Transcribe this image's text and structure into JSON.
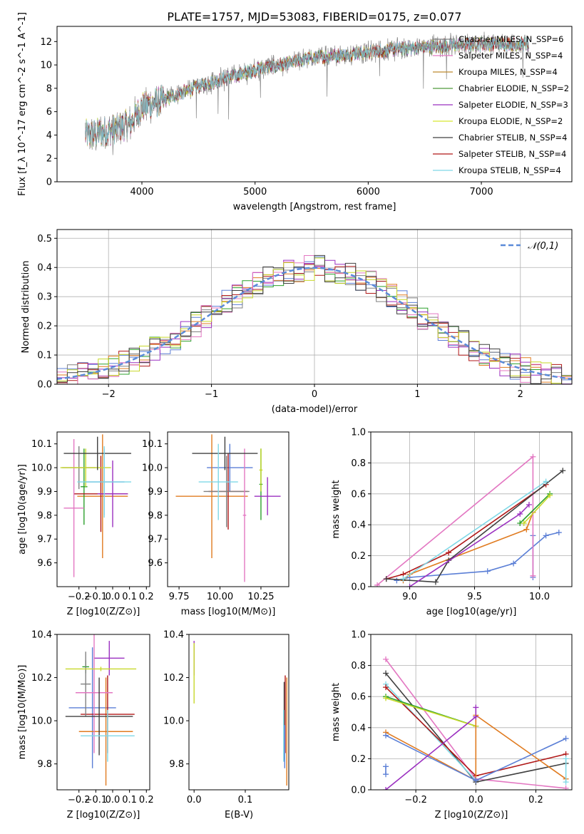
{
  "figure_title": "PLATE=1757, MJD=53083, FIBERID=0175, z=0.077",
  "colors": [
    "#808080",
    "#e377c2",
    "#bd8a2e",
    "#4f9a3c",
    "#9b30c0",
    "#d7e830",
    "#404040",
    "#b01818",
    "#7fd8e6"
  ],
  "chart_data": [
    {
      "type": "line",
      "xlabel": "wavelength [Angstrom, rest frame]",
      "ylabel": "Flux [f_λ 10^-17 erg cm^-2 s^-1 A^-1]",
      "xlim": [
        3250,
        7800
      ],
      "ylim": [
        0,
        13.3
      ],
      "xticks": [
        4000,
        5000,
        6000,
        7000
      ],
      "yticks": [
        0,
        2,
        4,
        6,
        8,
        10,
        12
      ],
      "grid": false,
      "legend_position": "right",
      "legend": [
        "Chabrier MILES, N_SSP=6",
        "Salpeter MILES, N_SSP=4",
        "Kroupa MILES, N_SSP=4",
        "Chabrier ELODIE, N_SSP=2",
        "Salpeter ELODIE, N_SSP=3",
        "Kroupa ELODIE, N_SSP=2",
        "Chabrier STELIB, N_SSP=4",
        "Salpeter STELIB, N_SSP=4",
        "Kroupa STELIB, N_SSP=4"
      ],
      "continuum": [
        [
          3500,
          4.0
        ],
        [
          3700,
          4.3
        ],
        [
          3900,
          5.0
        ],
        [
          4000,
          6.4
        ],
        [
          4200,
          7.0
        ],
        [
          4500,
          8.2
        ],
        [
          4800,
          9.0
        ],
        [
          5000,
          9.6
        ],
        [
          5200,
          9.9
        ],
        [
          5500,
          10.6
        ],
        [
          5800,
          10.9
        ],
        [
          6200,
          11.3
        ],
        [
          6600,
          11.6
        ],
        [
          7000,
          11.8
        ],
        [
          7400,
          11.8
        ]
      ],
      "data_range": [
        3500,
        7420
      ]
    },
    {
      "type": "line",
      "xlabel": "(data-model)/error",
      "ylabel": "Normed distribution",
      "xlim": [
        -2.5,
        2.5
      ],
      "ylim": [
        0,
        0.53
      ],
      "xticks": [
        -2,
        -1,
        0,
        1,
        2
      ],
      "yticks": [
        0.0,
        0.1,
        0.2,
        0.3,
        0.4,
        0.5
      ],
      "grid": true,
      "legend_position": "top-right",
      "legend": [
        "𝒩(0,1)"
      ],
      "bin_width": 0.1,
      "series_count": 9
    },
    {
      "type": "scatter",
      "xlabel": "Z [log10(Z/Z⊙)]",
      "ylabel": "age [log10(age/yr)]",
      "xlim": [
        -0.33,
        0.22
      ],
      "ylim": [
        9.5,
        10.15
      ],
      "xticks": [
        -0.2,
        -0.1,
        0.0,
        0.1,
        0.2
      ],
      "yticks": [
        9.6,
        9.7,
        9.8,
        9.9,
        10.0,
        10.1
      ],
      "grid": false,
      "errorbars": [
        {
          "color": "#5b7fd6",
          "x": -0.05,
          "y": 9.94,
          "xerr": 0.12,
          "yerr": 0.14
        },
        {
          "color": "#e07b20",
          "x": -0.06,
          "y": 9.88,
          "xerr": 0.15,
          "yerr": 0.26
        },
        {
          "color": "#2ca02c",
          "x": -0.17,
          "y": 9.92,
          "xerr": 0.02,
          "yerr": 0.16
        },
        {
          "color": "#b01818",
          "x": -0.07,
          "y": 9.89,
          "xerr": 0.16,
          "yerr": 0.16
        },
        {
          "color": "#9b30c0",
          "x": 0.0,
          "y": 9.89,
          "xerr": 0.09,
          "yerr": 0.14
        },
        {
          "color": "#7f7f7f",
          "x": -0.2,
          "y": 10.0,
          "xerr": 0.1,
          "yerr": 0.09
        },
        {
          "color": "#e377c2",
          "x": -0.23,
          "y": 9.83,
          "xerr": 0.06,
          "yerr": 0.29
        },
        {
          "color": "#c7d82a",
          "x": -0.16,
          "y": 10.0,
          "xerr": 0.15,
          "yerr": 0.08
        },
        {
          "color": "#404040",
          "x": -0.09,
          "y": 10.06,
          "xerr": 0.2,
          "yerr": 0.07
        },
        {
          "color": "#7fd8e6",
          "x": -0.05,
          "y": 9.94,
          "xerr": 0.16,
          "yerr": 0.15
        }
      ]
    },
    {
      "type": "scatter",
      "xlabel": "mass [log10(M/M⊙)]",
      "ylabel": "",
      "xlim": [
        9.68,
        10.42
      ],
      "ylim": [
        9.5,
        10.15
      ],
      "xticks": [
        9.75,
        10.0,
        10.25
      ],
      "yticks": [
        9.6,
        9.7,
        9.8,
        9.9,
        10.0,
        10.1
      ],
      "grid": false,
      "errorbars": [
        {
          "color": "#5b7fd6",
          "x": 10.06,
          "y": 10.0,
          "xerr": 0.14,
          "yerr": 0.1
        },
        {
          "color": "#e07b20",
          "x": 9.95,
          "y": 9.88,
          "xerr": 0.22,
          "yerr": 0.26
        },
        {
          "color": "#2ca02c",
          "x": 10.25,
          "y": 9.93,
          "xerr": 0.01,
          "yerr": 0.15
        },
        {
          "color": "#b01818",
          "x": 10.05,
          "y": 9.9,
          "xerr": 0.12,
          "yerr": 0.16
        },
        {
          "color": "#9b30c0",
          "x": 10.29,
          "y": 9.88,
          "xerr": 0.08,
          "yerr": 0.08
        },
        {
          "color": "#808080",
          "x": 10.04,
          "y": 9.9,
          "xerr": 0.14,
          "yerr": 0.15
        },
        {
          "color": "#e377c2",
          "x": 10.15,
          "y": 9.8,
          "xerr": 0.01,
          "yerr": 0.28
        },
        {
          "color": "#c7d82a",
          "x": 10.25,
          "y": 9.99,
          "xerr": 0.01,
          "yerr": 0.09
        },
        {
          "color": "#404040",
          "x": 10.03,
          "y": 10.06,
          "xerr": 0.2,
          "yerr": 0.07
        },
        {
          "color": "#7fd8e6",
          "x": 9.99,
          "y": 9.94,
          "xerr": 0.12,
          "yerr": 0.16
        }
      ]
    },
    {
      "type": "line",
      "xlabel": "age [log10(age/yr)]",
      "ylabel": "mass weight",
      "xlim": [
        8.7,
        10.25
      ],
      "ylim": [
        0,
        1
      ],
      "xticks": [
        9.0,
        9.5,
        10.0
      ],
      "yticks": [
        0.0,
        0.2,
        0.4,
        0.6,
        0.8,
        1.0
      ],
      "grid": true,
      "series": [
        {
          "color": "#5b7fd6",
          "x": [
            8.9,
            9.0,
            9.6,
            9.8,
            10.05,
            10.15
          ],
          "y": [
            0.04,
            0.06,
            0.1,
            0.15,
            0.33,
            0.35
          ]
        },
        {
          "color": "#5b7fd6",
          "x": [
            9.95,
            9.95
          ],
          "y": [
            0.06,
            0.33
          ]
        },
        {
          "color": "#e07b20",
          "x": [
            8.95,
            9.0,
            9.9,
            9.95
          ],
          "y": [
            0.04,
            0.08,
            0.37,
            0.48
          ]
        },
        {
          "color": "#e377c2",
          "x": [
            8.75,
            9.95,
            9.95
          ],
          "y": [
            0.01,
            0.84,
            0.07
          ]
        },
        {
          "color": "#b01818",
          "x": [
            8.82,
            8.95,
            9.3,
            10.05
          ],
          "y": [
            0.05,
            0.08,
            0.22,
            0.66
          ]
        },
        {
          "color": "#404040",
          "x": [
            8.82,
            9.2,
            9.3,
            10.18
          ],
          "y": [
            0.05,
            0.03,
            0.17,
            0.75
          ]
        },
        {
          "color": "#9b30c0",
          "x": [
            9.0,
            9.85,
            9.92
          ],
          "y": [
            0.0,
            0.47,
            0.53
          ]
        },
        {
          "color": "#7fd8e6",
          "x": [
            8.95,
            10.05
          ],
          "y": [
            0.05,
            0.68
          ]
        },
        {
          "color": "#2ca02c",
          "x": [
            9.85,
            10.08
          ],
          "y": [
            0.41,
            0.6
          ]
        },
        {
          "color": "#c7d82a",
          "x": [
            9.88,
            10.08
          ],
          "y": [
            0.41,
            0.59
          ]
        }
      ]
    },
    {
      "type": "scatter",
      "xlabel": "Z [log10(Z/Z⊙)]",
      "ylabel": "mass [log10(M/M⊙)]",
      "xlim": [
        -0.33,
        0.22
      ],
      "ylim": [
        9.68,
        10.4
      ],
      "xticks": [
        -0.2,
        -0.1,
        0.0,
        0.1,
        0.2
      ],
      "yticks": [
        9.8,
        10.0,
        10.2,
        10.4
      ],
      "grid": false,
      "errorbars": [
        {
          "color": "#5b7fd6",
          "x": -0.12,
          "y": 10.06,
          "xerr": 0.14,
          "yerr": 0.28
        },
        {
          "color": "#e07b20",
          "x": -0.04,
          "y": 9.95,
          "xerr": 0.16,
          "yerr": 0.25
        },
        {
          "color": "#2ca02c",
          "x": -0.16,
          "y": 10.25,
          "xerr": 0.02,
          "yerr": 0.03
        },
        {
          "color": "#b01818",
          "x": -0.03,
          "y": 10.03,
          "xerr": 0.16,
          "yerr": 0.18
        },
        {
          "color": "#9b30c0",
          "x": -0.02,
          "y": 10.29,
          "xerr": 0.09,
          "yerr": 0.08
        },
        {
          "color": "#808080",
          "x": -0.16,
          "y": 10.17,
          "xerr": 0.03,
          "yerr": 0.15
        },
        {
          "color": "#e377c2",
          "x": -0.11,
          "y": 10.13,
          "xerr": 0.11,
          "yerr": 0.28
        },
        {
          "color": "#c7d82a",
          "x": -0.07,
          "y": 10.24,
          "xerr": 0.21,
          "yerr": 0.01
        },
        {
          "color": "#404040",
          "x": -0.08,
          "y": 10.02,
          "xerr": 0.2,
          "yerr": 0.18
        },
        {
          "color": "#7fd8e6",
          "x": -0.03,
          "y": 9.93,
          "xerr": 0.16,
          "yerr": 0.12
        }
      ]
    },
    {
      "type": "scatter",
      "xlabel": "E(B-V)",
      "ylabel": "",
      "xlim": [
        -0.01,
        0.185
      ],
      "ylim": [
        9.68,
        10.4
      ],
      "xticks": [
        0.0,
        0.1
      ],
      "yticks": [
        9.8,
        10.0,
        10.2,
        10.4
      ],
      "grid": false,
      "errorbars": [
        {
          "color": "#9b30c0",
          "x": 0.0,
          "y": 10.29,
          "xerr": 0,
          "yerr": 0.08
        },
        {
          "color": "#c7d82a",
          "x": 0.0,
          "y": 10.22,
          "xerr": 0,
          "yerr": 0.14
        },
        {
          "color": "#b01818",
          "x": 0.178,
          "y": 10.03,
          "xerr": 0,
          "yerr": 0.18
        },
        {
          "color": "#404040",
          "x": 0.176,
          "y": 10.0,
          "xerr": 0,
          "yerr": 0.18
        },
        {
          "color": "#e07b20",
          "x": 0.181,
          "y": 9.95,
          "xerr": 0,
          "yerr": 0.25
        },
        {
          "color": "#7fd8e6",
          "x": 0.175,
          "y": 9.93,
          "xerr": 0,
          "yerr": 0.12
        },
        {
          "color": "#5b7fd6",
          "x": 0.177,
          "y": 9.88,
          "xerr": 0,
          "yerr": 0.1
        }
      ]
    },
    {
      "type": "line",
      "xlabel": "Z [log10(Z/Z⊙)]",
      "ylabel": "mass weight",
      "xlim": [
        -0.35,
        0.32
      ],
      "ylim": [
        0,
        1
      ],
      "xticks": [
        -0.2,
        0.0,
        0.2
      ],
      "yticks": [
        0.0,
        0.2,
        0.4,
        0.6,
        0.8,
        1.0
      ],
      "grid": true,
      "series": [
        {
          "color": "#e377c2",
          "x": [
            -0.3,
            0.0,
            0.3
          ],
          "y": [
            0.84,
            0.07,
            0.01
          ]
        },
        {
          "color": "#404040",
          "x": [
            -0.3,
            0.0,
            0.3
          ],
          "y": [
            0.75,
            0.05,
            0.17
          ]
        },
        {
          "color": "#7fd8e6",
          "x": [
            -0.3,
            0.0
          ],
          "y": [
            0.68,
            0.06
          ]
        },
        {
          "color": "#b01818",
          "x": [
            -0.3,
            0.0,
            0.3
          ],
          "y": [
            0.66,
            0.09,
            0.23
          ]
        },
        {
          "color": "#2ca02c",
          "x": [
            -0.3,
            0.0
          ],
          "y": [
            0.6,
            0.41
          ]
        },
        {
          "color": "#c7d82a",
          "x": [
            -0.3,
            0.0
          ],
          "y": [
            0.59,
            0.41
          ]
        },
        {
          "color": "#e07b20",
          "x": [
            -0.3,
            0.0,
            0.0,
            0.3
          ],
          "y": [
            0.37,
            0.06,
            0.48,
            0.07
          ]
        },
        {
          "color": "#5b7fd6",
          "x": [
            -0.3,
            0.0,
            0.3
          ],
          "y": [
            0.35,
            0.06,
            0.33
          ]
        },
        {
          "color": "#5b7fd6",
          "x": [
            -0.3,
            -0.3
          ],
          "y": [
            0.1,
            0.15
          ]
        },
        {
          "color": "#9b30c0",
          "x": [
            -0.3,
            0.0,
            0.0
          ],
          "y": [
            0.0,
            0.47,
            0.53
          ]
        },
        {
          "color": "#7fd8e6",
          "x": [
            0.3,
            0.3
          ],
          "y": [
            0.05,
            0.2
          ]
        }
      ]
    }
  ]
}
